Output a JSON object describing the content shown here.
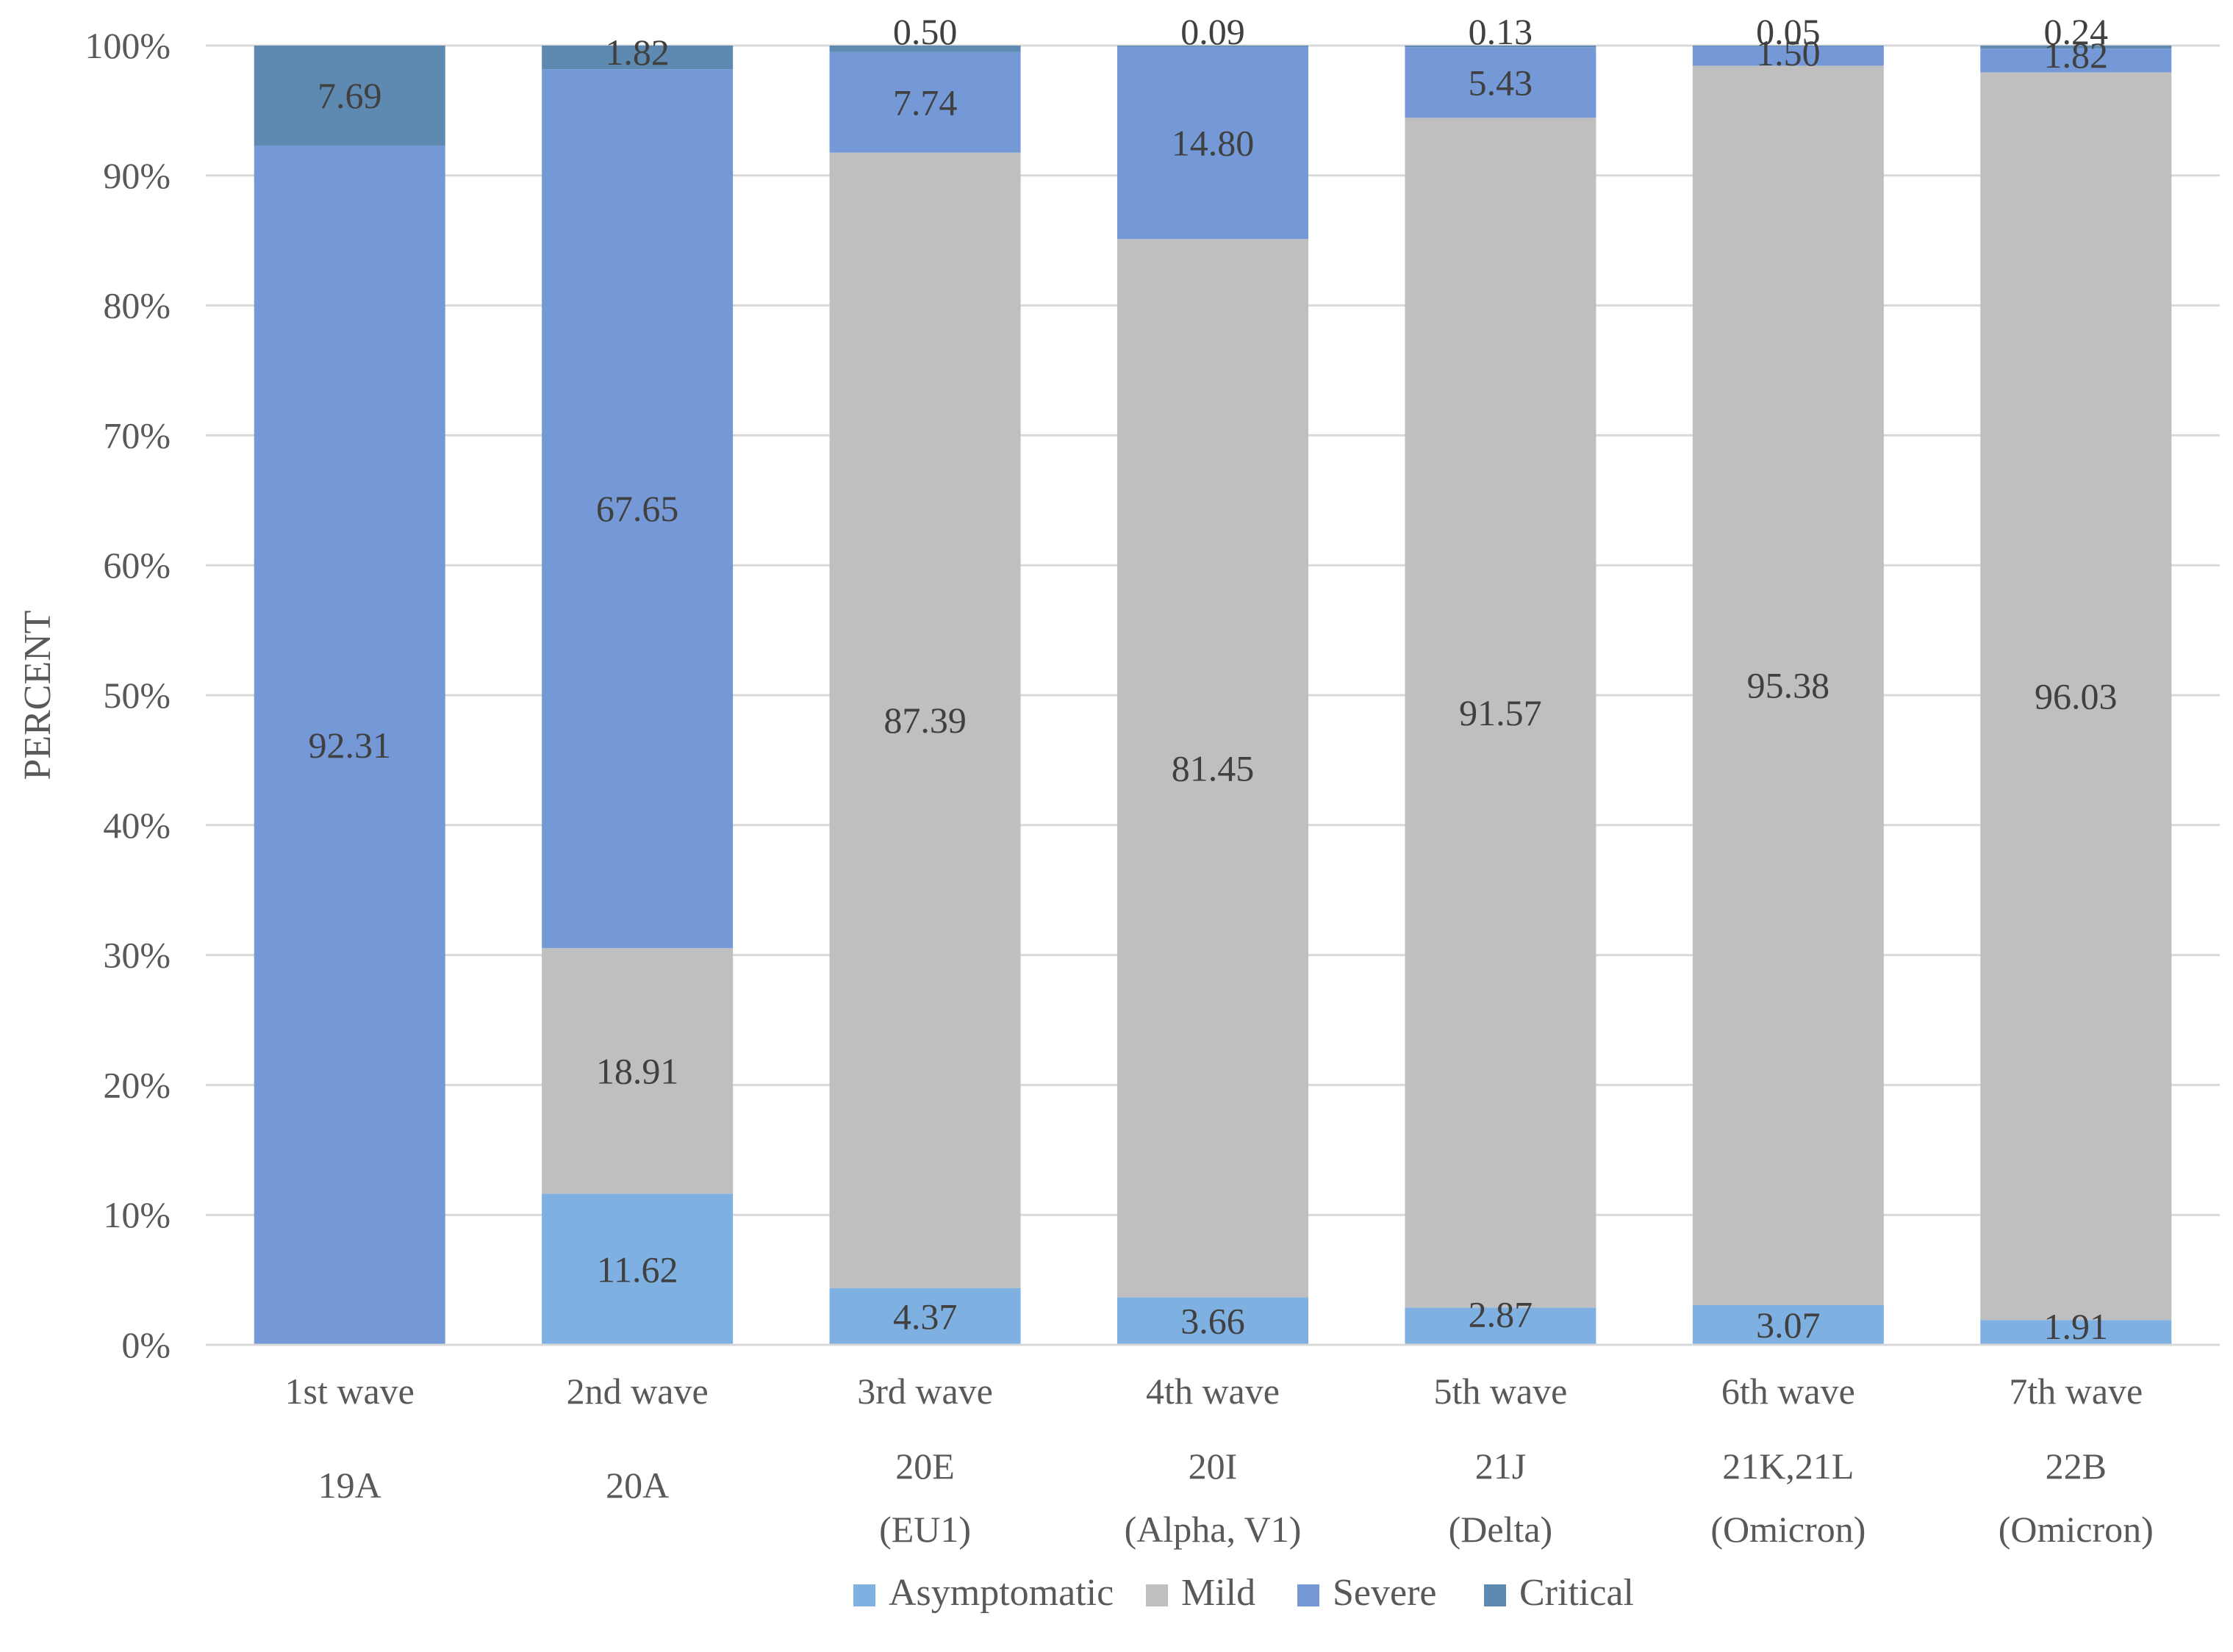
{
  "chart_data": {
    "type": "bar",
    "stacked": true,
    "percent_stacked": true,
    "title": "",
    "xlabel": "",
    "ylabel": "PERCENT",
    "ylim": [
      0,
      100
    ],
    "yticks": [
      "0%",
      "10%",
      "20%",
      "30%",
      "40%",
      "50%",
      "60%",
      "70%",
      "80%",
      "90%",
      "100%"
    ],
    "grid": true,
    "legend_position": "bottom",
    "categories": [
      [
        "1st wave",
        "19A"
      ],
      [
        "2nd wave",
        "20A"
      ],
      [
        "3rd wave",
        "20E",
        "(EU1)"
      ],
      [
        "4th wave",
        "20I",
        "(Alpha, V1)"
      ],
      [
        "5th wave",
        "21J",
        "(Delta)"
      ],
      [
        "6th wave",
        "21K,21L",
        "(Omicron)"
      ],
      [
        "7th wave",
        "22B",
        "(Omicron)"
      ]
    ],
    "series": [
      {
        "name": "Asymptomatic",
        "color": "#7fb0e2",
        "values": [
          null,
          11.62,
          4.37,
          3.66,
          2.87,
          3.07,
          1.91
        ],
        "labels": [
          "",
          "11.62",
          "4.37",
          "3.66",
          "2.87",
          "3.07",
          "1.91"
        ]
      },
      {
        "name": "Mild",
        "color": "#bfbfbf",
        "values": [
          null,
          18.91,
          87.39,
          81.45,
          91.57,
          95.38,
          96.03
        ],
        "labels": [
          "",
          "18.91",
          "87.39",
          "81.45",
          "91.57",
          "95.38",
          "96.03"
        ]
      },
      {
        "name": "Severe",
        "color": "#7499d6",
        "values": [
          92.31,
          67.65,
          7.74,
          14.8,
          5.43,
          1.5,
          1.82
        ],
        "labels": [
          "92.31",
          "67.65",
          "7.74",
          "14.80",
          "5.43",
          "1.50",
          "1.82"
        ]
      },
      {
        "name": "Critical",
        "color": "#5e8ab2",
        "values": [
          7.69,
          1.82,
          0.5,
          0.09,
          0.13,
          0.05,
          0.24
        ],
        "labels": [
          "7.69",
          "1.82",
          "0.50",
          "0.09",
          "0.13",
          "0.05",
          "0.24"
        ]
      }
    ]
  }
}
